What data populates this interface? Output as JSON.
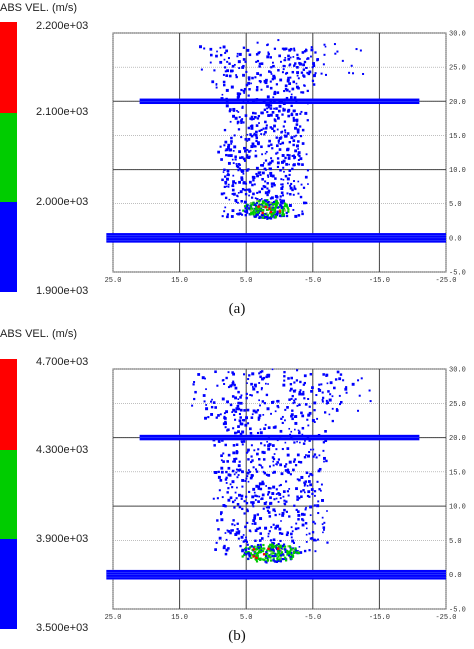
{
  "chart_data": [
    {
      "type": "scatter",
      "panel_label": "(a)",
      "colorbar": {
        "title": "ABS VEL. (m/s)",
        "labels": [
          "2.200e+03",
          "2.100e+03",
          "2.000e+03",
          "1.900e+03"
        ],
        "values": [
          2200,
          2100,
          2000,
          1900
        ],
        "colors": [
          "#ff0000",
          "#00cc00",
          "#0000ff"
        ]
      },
      "x_ticks": [
        "25.0",
        "15.0",
        "5.0",
        "-5.0",
        "-15.0",
        "-25.0"
      ],
      "y_ticks": [
        "30.0",
        "25.0",
        "20.0",
        "15.0",
        "10.0",
        "5.0",
        "0.0",
        "-5.0"
      ],
      "xlim": [
        25,
        -25
      ],
      "ylim": [
        -5,
        30
      ],
      "grid": true,
      "plates": [
        {
          "x_from": 21,
          "x_to": -21,
          "y": 20.0,
          "thickness": 0.8
        },
        {
          "x_from": 26,
          "x_to": -25,
          "y": 0.0,
          "thickness": 1.4
        }
      ],
      "debris_cloud": {
        "x_from": 9,
        "x_to": -5,
        "y_from": 3,
        "y_to": 28
      },
      "high_speed_cluster": {
        "x_center": 2,
        "y_center": 4.2,
        "half_width": 3.5
      }
    },
    {
      "type": "scatter",
      "panel_label": "(b)",
      "colorbar": {
        "title": "ABS VEL. (m/s)",
        "labels": [
          "4.700e+03",
          "4.300e+03",
          "3.900e+03",
          "3.500e+03"
        ],
        "values": [
          4700,
          4300,
          3900,
          3500
        ],
        "colors": [
          "#ff0000",
          "#00cc00",
          "#0000ff"
        ]
      },
      "x_ticks": [
        "25.0",
        "15.0",
        "5.0",
        "-5.0",
        "-15.0",
        "-25.0"
      ],
      "y_ticks": [
        "30.0",
        "25.0",
        "20.0",
        "15.0",
        "10.0",
        "5.0",
        "0.0",
        "-5.0"
      ],
      "xlim": [
        25,
        -25
      ],
      "ylim": [
        -5,
        30
      ],
      "grid": true,
      "plates": [
        {
          "x_from": 21,
          "x_to": -21,
          "y": 20.0,
          "thickness": 0.8
        },
        {
          "x_from": 26,
          "x_to": -25,
          "y": 0.0,
          "thickness": 1.4
        }
      ],
      "debris_cloud": {
        "x_from": 10,
        "x_to": -8,
        "y_from": 3,
        "y_to": 30
      },
      "high_speed_cluster": {
        "x_center": 1.5,
        "y_center": 3.2,
        "half_width": 4.5
      }
    }
  ]
}
